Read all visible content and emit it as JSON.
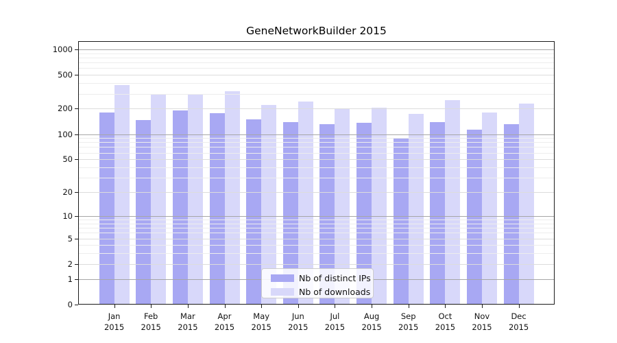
{
  "chart_data": {
    "type": "bar",
    "title": "GeneNetworkBuilder 2015",
    "categories": [
      "Jan 2015",
      "Feb 2015",
      "Mar 2015",
      "Apr 2015",
      "May 2015",
      "Jun 2015",
      "Jul 2015",
      "Aug 2015",
      "Sep 2015",
      "Oct 2015",
      "Nov 2015",
      "Dec 2015"
    ],
    "series": [
      {
        "name": "Nb of distinct IPs",
        "color": "#a8a8f3",
        "values": [
          180,
          147,
          190,
          177,
          150,
          139,
          132,
          136,
          91,
          139,
          114,
          132
        ]
      },
      {
        "name": "Nb of downloads",
        "color": "#d8d8fa",
        "values": [
          380,
          293,
          299,
          322,
          220,
          242,
          197,
          204,
          174,
          252,
          179,
          230
        ]
      }
    ],
    "xlabel": "",
    "ylabel": "",
    "y_scale": "log10(value + 1)",
    "y_ticks": [
      0,
      1,
      2,
      5,
      10,
      20,
      50,
      100,
      200,
      500,
      1000
    ],
    "y_minor_gridlines": [
      3,
      4,
      6,
      7,
      8,
      9,
      30,
      40,
      60,
      70,
      80,
      90,
      300,
      400,
      600,
      700,
      800,
      900
    ],
    "ylim": [
      0,
      1250
    ],
    "grid": "horizontal",
    "legend_position": "lower center inside"
  },
  "style": {
    "background": "#ffffff",
    "axis_color": "#1a1a1a",
    "text_color": "#111111",
    "major_grid_values": [
      1,
      10,
      100,
      1000
    ],
    "grid_major_color": "#a6a6a6",
    "grid_labeled_color": "#dcdcdc",
    "grid_minor_color": "#ededed",
    "legend_border_color": "#cccccc",
    "legend_background": "rgba(255,255,255,0.85)"
  }
}
